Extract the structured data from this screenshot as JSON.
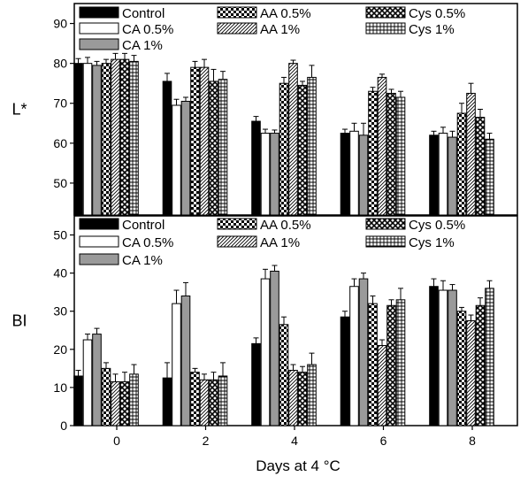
{
  "chart_data": [
    {
      "type": "bar",
      "ylabel": "L*",
      "xlabel": "",
      "ylim": [
        42,
        95
      ],
      "yticks": [
        50,
        60,
        70,
        80,
        90
      ],
      "categories": [
        "0",
        "2",
        "4",
        "6",
        "8"
      ],
      "legend_position": "top",
      "series": [
        {
          "name": "Control",
          "values": [
            80.0,
            75.5,
            65.5,
            62.5,
            62.0
          ],
          "errors": [
            1.2,
            2.0,
            1.2,
            1.0,
            1.0
          ]
        },
        {
          "name": "CA 0.5%",
          "values": [
            80.0,
            69.5,
            62.5,
            63.0,
            62.5
          ],
          "errors": [
            1.5,
            1.5,
            1.0,
            2.0,
            1.5
          ]
        },
        {
          "name": "CA 1%",
          "values": [
            79.5,
            70.5,
            62.5,
            62.0,
            61.5
          ],
          "errors": [
            1.0,
            1.0,
            0.8,
            3.0,
            1.5
          ]
        },
        {
          "name": "AA 0.5%",
          "values": [
            80.0,
            79.0,
            75.0,
            73.0,
            67.5
          ],
          "errors": [
            1.0,
            1.5,
            1.5,
            1.0,
            2.5
          ]
        },
        {
          "name": "AA 1%",
          "values": [
            81.0,
            79.0,
            80.0,
            76.5,
            72.5
          ],
          "errors": [
            1.5,
            2.0,
            0.8,
            0.8,
            2.5
          ]
        },
        {
          "name": "Cys 0.5%",
          "values": [
            81.0,
            75.5,
            74.5,
            72.5,
            66.5
          ],
          "errors": [
            1.5,
            3.0,
            1.0,
            1.0,
            2.0
          ]
        },
        {
          "name": "Cys 1%",
          "values": [
            80.5,
            76.0,
            76.5,
            71.5,
            61.0
          ],
          "errors": [
            1.5,
            2.0,
            3.0,
            1.5,
            1.5
          ]
        }
      ]
    },
    {
      "type": "bar",
      "ylabel": "BI",
      "xlabel": "Days at 4 °C",
      "ylim": [
        0,
        55
      ],
      "yticks": [
        0,
        10,
        20,
        30,
        40,
        50
      ],
      "categories": [
        "0",
        "2",
        "4",
        "6",
        "8"
      ],
      "legend_position": "top",
      "series": [
        {
          "name": "Control",
          "values": [
            13.0,
            12.5,
            21.5,
            28.5,
            36.5
          ],
          "errors": [
            1.5,
            4.0,
            1.5,
            1.5,
            2.0
          ]
        },
        {
          "name": "CA 0.5%",
          "values": [
            22.5,
            32.0,
            38.5,
            36.5,
            35.5
          ],
          "errors": [
            1.5,
            3.5,
            2.5,
            2.0,
            2.5
          ]
        },
        {
          "name": "CA 1%",
          "values": [
            24.0,
            34.0,
            40.5,
            38.5,
            35.5
          ],
          "errors": [
            1.5,
            3.5,
            1.5,
            1.5,
            1.5
          ]
        },
        {
          "name": "AA 0.5%",
          "values": [
            15.0,
            14.0,
            26.5,
            32.0,
            30.0
          ],
          "errors": [
            1.5,
            1.0,
            2.0,
            2.0,
            1.0
          ]
        },
        {
          "name": "AA 1%",
          "values": [
            11.5,
            12.0,
            14.5,
            21.0,
            27.5
          ],
          "errors": [
            2.0,
            1.5,
            1.5,
            1.5,
            1.5
          ]
        },
        {
          "name": "Cys 0.5%",
          "values": [
            11.5,
            12.0,
            14.0,
            31.5,
            31.5
          ],
          "errors": [
            2.5,
            2.0,
            1.5,
            1.5,
            2.0
          ]
        },
        {
          "name": "Cys 1%",
          "values": [
            13.5,
            13.0,
            16.0,
            33.0,
            36.0
          ],
          "errors": [
            2.5,
            3.5,
            3.0,
            3.0,
            2.0
          ]
        }
      ]
    }
  ]
}
